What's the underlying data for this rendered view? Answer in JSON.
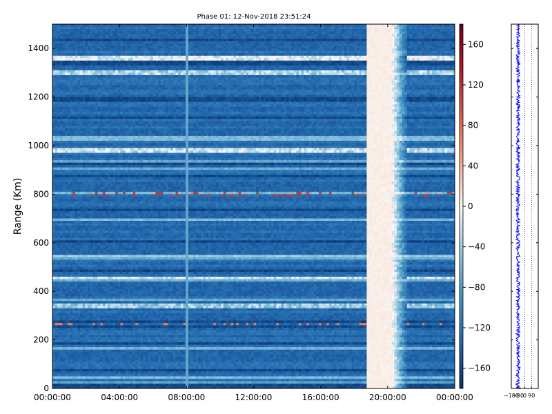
{
  "chart_data": [
    {
      "type": "heatmap",
      "title": "Phase 01: 12-Nov-2018 23:51:24",
      "xlabel": "",
      "ylabel": "Range (Km)",
      "x_ticks": [
        "00:00:00",
        "04:00:00",
        "08:00:00",
        "12:00:00",
        "16:00:00",
        "20:00:00",
        "00:00:00"
      ],
      "x_range_hours": [
        0,
        24
      ],
      "y_ticks": [
        0,
        200,
        400,
        600,
        800,
        1000,
        1200,
        1400
      ],
      "ylim": [
        0,
        1500
      ],
      "colorbar": {
        "ticks": [
          160,
          120,
          80,
          40,
          0,
          -40,
          -80,
          -120,
          -160
        ],
        "range": [
          -180,
          180
        ],
        "colormap": [
          "#08306b",
          "#2166ac",
          "#4393c3",
          "#92c5de",
          "#f7f7f7",
          "#fddbc7",
          "#f4a582",
          "#d6604d",
          "#67001f"
        ]
      },
      "background_value": -135,
      "features": [
        {
          "kind": "light-band",
          "hours": [
            18.7,
            20.2
          ],
          "value": 15,
          "note_text": ""
        },
        {
          "kind": "light-transition",
          "hours": [
            20.2,
            21.2
          ],
          "value": -60
        },
        {
          "kind": "vertical-line",
          "hour": 8.0,
          "value": -70
        },
        {
          "kind": "bright-row",
          "range_km": 1360,
          "value": -10
        },
        {
          "kind": "bright-row",
          "range_km": 1300,
          "value": -30
        },
        {
          "kind": "bright-row",
          "range_km": 980,
          "value": -20
        },
        {
          "kind": "bright-row",
          "range_km": 455,
          "value": -15
        },
        {
          "kind": "bright-row",
          "range_km": 340,
          "value": -40
        },
        {
          "kind": "red-row",
          "range_km": 800,
          "value": 150
        },
        {
          "kind": "red-row",
          "range_km": 265,
          "value": 120
        }
      ]
    },
    {
      "type": "line",
      "title": "",
      "x_ticks": [
        "−180",
        "−90",
        "0",
        "90"
      ],
      "xlim": [
        -180,
        180
      ],
      "ylim": [
        0,
        1500
      ],
      "series_color": "#0000ff",
      "series_center": -90,
      "series_spread": 25,
      "reference_lines": [
        0,
        90
      ]
    }
  ]
}
